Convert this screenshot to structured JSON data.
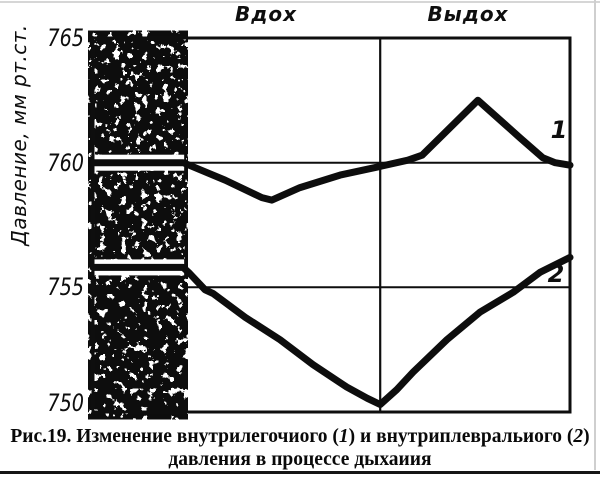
{
  "window": {
    "background": "#ffffff",
    "ink": "#0e0e0e"
  },
  "chart_data": {
    "type": "line",
    "title": "",
    "xlabel": "",
    "ylabel": "Давление, мм рт.ст.",
    "ylim": [
      750,
      765
    ],
    "yticks": [
      765,
      760,
      755,
      750
    ],
    "x_unit": "percent of breathing cycle (no numeric x axis shown)",
    "grid": "partial: horizontal lines at 760 and 755, one vertical divider between phases",
    "legend_position": "inline labels at right ends of curves",
    "phases": [
      {
        "label": "Вдох"
      },
      {
        "label": "Выдох"
      }
    ],
    "phase_divider_x": 60.2,
    "left_band_x": [
      0,
      18.9
    ],
    "gridlines": [
      {
        "value": 760,
        "across_band": true
      },
      {
        "value": 755,
        "across_band": false
      }
    ],
    "series": [
      {
        "label": "1",
        "name": "внутрилегочиого давления (кривая 1)",
        "points": [
          [
            0,
            760.0
          ],
          [
            18.9,
            760.0
          ],
          [
            27.7,
            759.3
          ],
          [
            35.4,
            758.6
          ],
          [
            37.5,
            758.5
          ],
          [
            43.4,
            759.0
          ],
          [
            51.8,
            759.5
          ],
          [
            60.2,
            759.85
          ],
          [
            66,
            760.1
          ],
          [
            69,
            760.3
          ],
          [
            80.7,
            762.5
          ],
          [
            89.5,
            761.0
          ],
          [
            94.3,
            760.2
          ],
          [
            96.9,
            760.0
          ],
          [
            100,
            759.9
          ]
        ]
      },
      {
        "label": "2",
        "name": "внутриплевральиого давления (кривая 2)",
        "points": [
          [
            0,
            755.8
          ],
          [
            18.9,
            755.8
          ],
          [
            20.3,
            755.55
          ],
          [
            23.5,
            754.9
          ],
          [
            25.2,
            754.75
          ],
          [
            31.9,
            753.8
          ],
          [
            39.2,
            752.9
          ],
          [
            46.1,
            751.9
          ],
          [
            53.2,
            751.0
          ],
          [
            57.5,
            750.55
          ],
          [
            60.2,
            750.3
          ],
          [
            63.7,
            750.9
          ],
          [
            67.1,
            751.6
          ],
          [
            74.2,
            752.9
          ],
          [
            81.1,
            754.0
          ],
          [
            88.1,
            754.8
          ],
          [
            93.7,
            755.6
          ],
          [
            100,
            756.2
          ]
        ]
      }
    ]
  },
  "caption": {
    "parts": [
      "Рис.19. Изменение внутрилегочиого (",
      "1",
      ") и внутриплевральиого (",
      "2",
      ")"
    ],
    "line2": "давления в процессе дыхаиия"
  }
}
